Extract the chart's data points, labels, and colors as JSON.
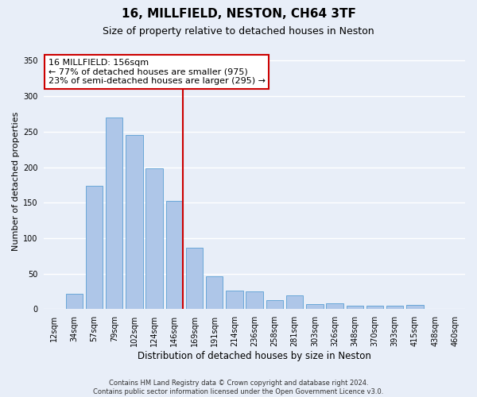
{
  "title1": "16, MILLFIELD, NESTON, CH64 3TF",
  "title2": "Size of property relative to detached houses in Neston",
  "xlabel": "Distribution of detached houses by size in Neston",
  "ylabel": "Number of detached properties",
  "categories": [
    "12sqm",
    "34sqm",
    "57sqm",
    "79sqm",
    "102sqm",
    "124sqm",
    "146sqm",
    "169sqm",
    "191sqm",
    "214sqm",
    "236sqm",
    "258sqm",
    "281sqm",
    "303sqm",
    "326sqm",
    "348sqm",
    "370sqm",
    "393sqm",
    "415sqm",
    "438sqm",
    "460sqm"
  ],
  "values": [
    1,
    22,
    174,
    270,
    245,
    198,
    153,
    87,
    46,
    26,
    25,
    13,
    20,
    7,
    8,
    5,
    5,
    5,
    6,
    1,
    1
  ],
  "bar_color": "#aec6e8",
  "bar_edge_color": "#5a9fd4",
  "vline_color": "#cc0000",
  "annotation_line1": "16 MILLFIELD: 156sqm",
  "annotation_line2": "← 77% of detached houses are smaller (975)",
  "annotation_line3": "23% of semi-detached houses are larger (295) →",
  "annotation_box_facecolor": "#ffffff",
  "annotation_box_edge": "#cc0000",
  "ylim": [
    0,
    360
  ],
  "yticks": [
    0,
    50,
    100,
    150,
    200,
    250,
    300,
    350
  ],
  "background_color": "#e8eef8",
  "plot_background": "#e8eef8",
  "grid_color": "#ffffff",
  "footnote": "Contains HM Land Registry data © Crown copyright and database right 2024.\nContains public sector information licensed under the Open Government Licence v3.0.",
  "title1_fontsize": 11,
  "title2_fontsize": 9,
  "xlabel_fontsize": 8.5,
  "ylabel_fontsize": 8,
  "tick_fontsize": 7,
  "annotation_fontsize": 8,
  "footnote_fontsize": 6
}
